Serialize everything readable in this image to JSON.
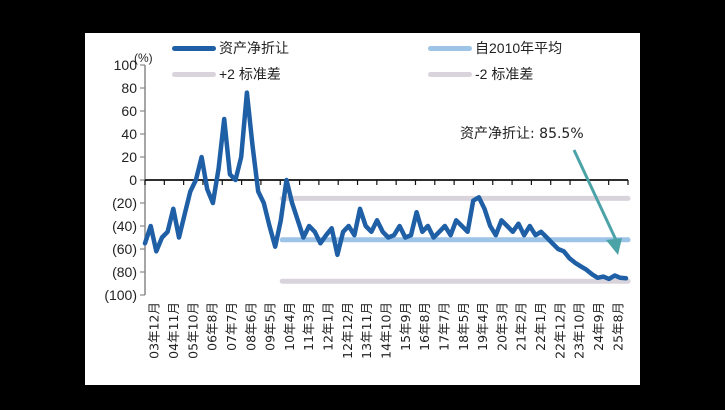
{
  "chart_data": {
    "type": "line",
    "title": "",
    "ylabel": "(%)",
    "xlabel": "",
    "ylim": [
      -100,
      100
    ],
    "yticks": [
      100,
      80,
      60,
      40,
      20,
      0,
      -20,
      -40,
      -60,
      -80,
      -100
    ],
    "ytick_labels": [
      "100",
      "80",
      "60",
      "40",
      "20",
      "0",
      "(20)",
      "(40)",
      "(60)",
      "(80)",
      "(100)"
    ],
    "categories": [
      "03年12月",
      "04年11月",
      "05年10月",
      "06年8月",
      "07年7月",
      "08年6月",
      "09年5月",
      "10年4月",
      "11年3月",
      "12年1月",
      "12年12月",
      "13年11月",
      "14年10月",
      "15年9月",
      "16年8月",
      "17年7月",
      "18年5月",
      "19年4月",
      "20年3月",
      "21年2月",
      "22年1月",
      "22年12月",
      "23年10月",
      "24年9月",
      "25年8月"
    ],
    "grid": false,
    "legend_position": "top",
    "series": [
      {
        "name": "资产净折让",
        "color": "#1F5FA6",
        "values": [
          -55,
          -40,
          -62,
          -50,
          -45,
          -25,
          -50,
          -30,
          -10,
          0,
          20,
          -8,
          -20,
          10,
          53,
          5,
          0,
          20,
          76,
          30,
          -10,
          -20,
          -40,
          -58,
          -35,
          0,
          -20,
          -35,
          -50,
          -40,
          -45,
          -55,
          -48,
          -42,
          -65,
          -45,
          -40,
          -48,
          -25,
          -40,
          -45,
          -35,
          -45,
          -50,
          -48,
          -40,
          -50,
          -48,
          -28,
          -45,
          -40,
          -50,
          -45,
          -40,
          -48,
          -35,
          -40,
          -45,
          -18,
          -15,
          -25,
          -40,
          -48,
          -35,
          -40,
          -45,
          -38,
          -48,
          -40,
          -48,
          -45,
          -50,
          -55,
          -60,
          -62,
          -68,
          -72,
          -75,
          -78,
          -82,
          -85,
          -84,
          -86,
          -83,
          -85,
          -85.5
        ]
      },
      {
        "name": "自2010年平均",
        "color": "#9DC3E6",
        "constant": -52,
        "start_category": "10年4月"
      },
      {
        "name": "+2 标准差",
        "color": "#D9D3DC",
        "constant": -16,
        "start_category": "10年4月"
      },
      {
        "name": "-2 标准差",
        "color": "#D9D3DC",
        "constant": -88,
        "start_category": "10年4月"
      }
    ],
    "annotations": [
      {
        "text": "资产净折让: 85.5%",
        "arrow_color": "#4BA3A8",
        "points_to": "25年8月"
      }
    ]
  },
  "legend": [
    {
      "label": "资产净折让",
      "color": "#1F5FA6"
    },
    {
      "label": "自2010年平均",
      "color": "#9DC3E6"
    },
    {
      "label": "+2 标准差",
      "color": "#D9D3DC"
    },
    {
      "label": "-2 标准差",
      "color": "#D9D3DC"
    }
  ],
  "annotation_text": "资产净折让: 85.5%",
  "unit_label": "(%)"
}
